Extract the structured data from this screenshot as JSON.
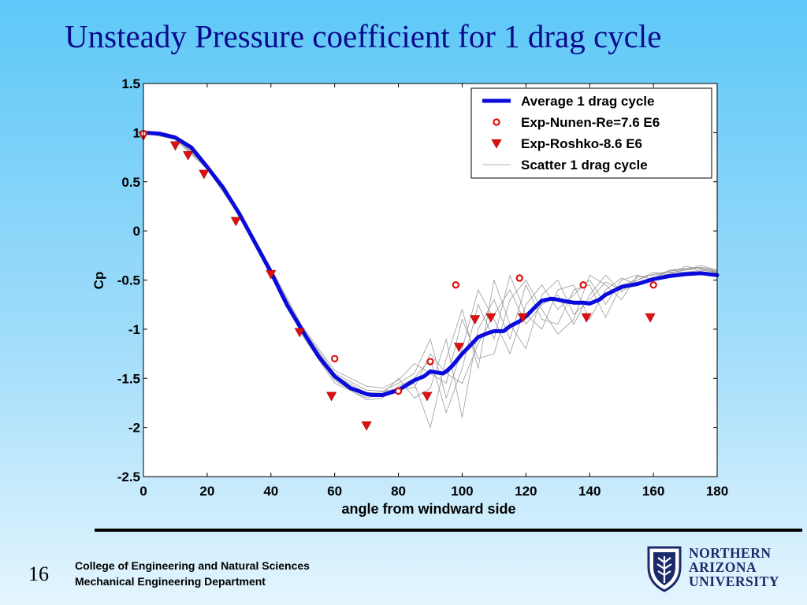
{
  "slide": {
    "title": "Unsteady Pressure coefficient for 1 drag cycle",
    "page_number": "16",
    "footer_line1": "College of Engineering and Natural Sciences",
    "footer_line2": "Mechanical Engineering Department",
    "logo_lines": [
      "NORTHERN",
      "ARIZONA",
      "UNIVERSITY"
    ]
  },
  "colors": {
    "title": "#0a0a8c",
    "average": "#0a0adc",
    "experiment": "#e01010",
    "scatter": "#9a9a9a",
    "logo": "#1b2a6a"
  },
  "chart_data": {
    "type": "line",
    "title": "",
    "xlabel": "angle from windward side",
    "ylabel": "Cp",
    "xlim": [
      0,
      180
    ],
    "ylim": [
      -2.5,
      1.5
    ],
    "xticks": [
      "0",
      "20",
      "40",
      "60",
      "80",
      "100",
      "120",
      "140",
      "160",
      "180"
    ],
    "yticks": [
      "1.5",
      "1",
      "0.5",
      "0",
      "-0.5",
      "-1",
      "-1.5",
      "-2",
      "-2.5"
    ],
    "grid": false,
    "legend_position": "top-right",
    "series": [
      {
        "name": "Average 1 drag cycle",
        "style": "thick-line",
        "x": [
          0,
          5,
          10,
          15,
          20,
          25,
          30,
          35,
          40,
          45,
          50,
          55,
          60,
          65,
          70,
          72,
          75,
          80,
          85,
          88,
          90,
          92,
          94,
          95,
          97,
          100,
          103,
          105,
          108,
          110,
          113,
          115,
          118,
          120,
          123,
          125,
          128,
          130,
          133,
          135,
          138,
          140,
          143,
          145,
          150,
          155,
          160,
          165,
          170,
          175,
          180
        ],
        "y": [
          1.0,
          0.99,
          0.95,
          0.85,
          0.65,
          0.44,
          0.18,
          -0.12,
          -0.42,
          -0.75,
          -1.02,
          -1.28,
          -1.48,
          -1.6,
          -1.66,
          -1.67,
          -1.67,
          -1.62,
          -1.52,
          -1.48,
          -1.43,
          -1.44,
          -1.45,
          -1.43,
          -1.37,
          -1.25,
          -1.15,
          -1.08,
          -1.04,
          -1.02,
          -1.02,
          -0.97,
          -0.92,
          -0.87,
          -0.77,
          -0.71,
          -0.69,
          -0.7,
          -0.72,
          -0.73,
          -0.73,
          -0.74,
          -0.7,
          -0.65,
          -0.57,
          -0.54,
          -0.49,
          -0.46,
          -0.44,
          -0.43,
          -0.45
        ]
      },
      {
        "name": "Exp-Nunen-Re=7.6 E6",
        "style": "circle-marker",
        "x": [
          0,
          60,
          80,
          90,
          98,
          118,
          138,
          160
        ],
        "y": [
          0.99,
          -1.3,
          -1.63,
          -1.33,
          -0.55,
          -0.48,
          -0.55,
          -0.55
        ]
      },
      {
        "name": "Exp-Roshko-8.6 E6",
        "style": "triangle-marker",
        "x": [
          0,
          10,
          14,
          19,
          29,
          40,
          49,
          59,
          70,
          89,
          99,
          104,
          109,
          119,
          139,
          159
        ],
        "y": [
          0.97,
          0.87,
          0.77,
          0.58,
          0.1,
          -0.44,
          -1.03,
          -1.68,
          -1.98,
          -1.68,
          -1.18,
          -0.9,
          -0.88,
          -0.88,
          -0.88,
          -0.88
        ]
      },
      {
        "name": "Scatter 1 drag cycle",
        "style": "thin-lines",
        "x": [
          0,
          10,
          20,
          30,
          40,
          50,
          60,
          70,
          75,
          80,
          85,
          90,
          95,
          100,
          105,
          110,
          115,
          120,
          125,
          130,
          135,
          140,
          145,
          150,
          155,
          160,
          165,
          170,
          175,
          180
        ],
        "lines": [
          [
            1.0,
            0.94,
            0.65,
            0.18,
            -0.4,
            -1.0,
            -1.45,
            -1.62,
            -1.63,
            -1.55,
            -1.45,
            -1.1,
            -1.7,
            -1.2,
            -0.6,
            -0.9,
            -1.25,
            -0.75,
            -0.55,
            -0.8,
            -0.65,
            -0.5,
            -0.75,
            -0.5,
            -0.45,
            -0.5,
            -0.4,
            -0.38,
            -0.37,
            -0.4
          ],
          [
            1.0,
            0.95,
            0.66,
            0.2,
            -0.42,
            -1.03,
            -1.5,
            -1.68,
            -1.66,
            -1.62,
            -1.55,
            -2.0,
            -1.3,
            -0.8,
            -1.4,
            -0.5,
            -0.95,
            -1.2,
            -0.65,
            -0.5,
            -0.85,
            -0.7,
            -0.52,
            -0.6,
            -0.47,
            -0.45,
            -0.42,
            -0.42,
            -0.4,
            -0.42
          ],
          [
            1.0,
            0.95,
            0.64,
            0.17,
            -0.44,
            -1.05,
            -1.52,
            -1.72,
            -1.7,
            -1.58,
            -1.5,
            -1.3,
            -1.85,
            -1.4,
            -0.75,
            -1.1,
            -0.45,
            -0.85,
            -1.0,
            -0.6,
            -0.55,
            -0.9,
            -0.6,
            -0.48,
            -0.55,
            -0.48,
            -0.4,
            -0.4,
            -0.38,
            -0.41
          ],
          [
            1.0,
            0.93,
            0.63,
            0.16,
            -0.45,
            -1.07,
            -1.55,
            -1.7,
            -1.66,
            -1.5,
            -1.7,
            -1.6,
            -1.1,
            -1.9,
            -1.0,
            -0.7,
            -1.1,
            -0.55,
            -0.9,
            -0.95,
            -0.6,
            -0.55,
            -0.88,
            -0.55,
            -0.5,
            -0.42,
            -0.45,
            -0.36,
            -0.39,
            -0.43
          ],
          [
            1.0,
            0.96,
            0.67,
            0.21,
            -0.38,
            -0.98,
            -1.42,
            -1.58,
            -1.6,
            -1.52,
            -1.35,
            -1.45,
            -1.55,
            -0.9,
            -1.3,
            -1.25,
            -0.7,
            -0.5,
            -0.8,
            -1.05,
            -0.9,
            -0.45,
            -0.55,
            -0.7,
            -0.45,
            -0.5,
            -0.43,
            -0.4,
            -0.35,
            -0.4
          ],
          [
            1.0,
            0.95,
            0.65,
            0.19,
            -0.41,
            -1.01,
            -1.47,
            -1.65,
            -1.64,
            -1.6,
            -1.6,
            -1.25,
            -1.45,
            -1.55,
            -1.15,
            -0.85,
            -0.6,
            -0.95,
            -0.75,
            -0.65,
            -0.95,
            -0.65,
            -0.45,
            -0.62,
            -0.5,
            -0.44,
            -0.41,
            -0.39,
            -0.38,
            -0.42
          ]
        ]
      }
    ]
  }
}
